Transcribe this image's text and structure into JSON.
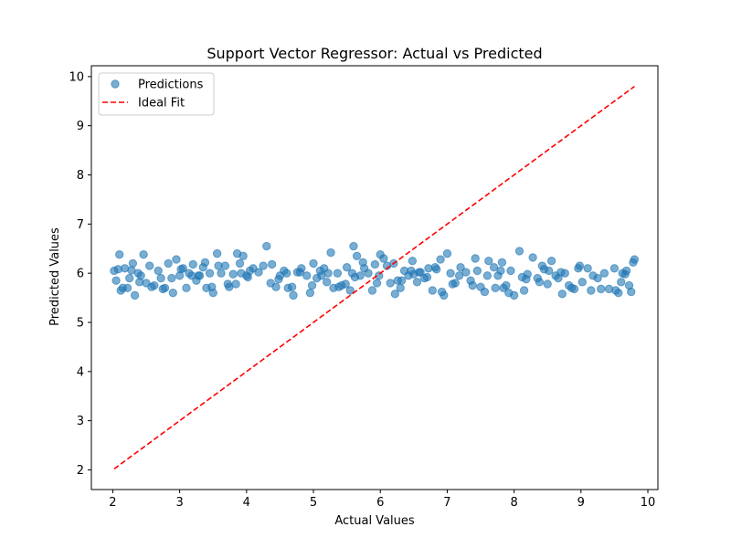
{
  "chart_data": {
    "type": "scatter",
    "title": "Support Vector Regressor: Actual vs Predicted",
    "xlabel": "Actual Values",
    "ylabel": "Predicted Values",
    "xlim": [
      1.68,
      10.15
    ],
    "ylim": [
      1.6,
      10.22
    ],
    "xticks": [
      2,
      3,
      4,
      5,
      6,
      7,
      8,
      9,
      10
    ],
    "yticks": [
      2,
      3,
      4,
      5,
      6,
      7,
      8,
      9,
      10
    ],
    "grid": false,
    "legend": {
      "placement": "top-left",
      "entries": [
        {
          "label": "Predictions",
          "marker": "circle",
          "color": "#1f77b4"
        },
        {
          "label": "Ideal Fit",
          "marker": "dashed-line",
          "color": "#ff0000"
        }
      ]
    },
    "series": [
      {
        "name": "Predictions",
        "type": "scatter",
        "color": "#1f77b4",
        "x": [
          2.02,
          2.05,
          2.1,
          2.12,
          2.18,
          2.22,
          2.25,
          2.3,
          2.33,
          2.38,
          2.42,
          2.46,
          2.5,
          2.55,
          2.62,
          2.68,
          2.72,
          2.78,
          2.83,
          2.9,
          2.95,
          3.0,
          3.05,
          3.1,
          3.14,
          3.2,
          3.25,
          3.3,
          3.35,
          3.4,
          3.45,
          3.5,
          3.56,
          3.62,
          3.68,
          3.74,
          3.8,
          3.86,
          3.9,
          3.95,
          4.0,
          4.05,
          4.1,
          4.18,
          4.25,
          4.3,
          4.36,
          4.44,
          4.5,
          4.56,
          4.62,
          4.7,
          4.76,
          4.82,
          4.9,
          4.95,
          5.0,
          5.05,
          5.1,
          5.16,
          5.2,
          5.26,
          5.3,
          5.36,
          5.42,
          5.5,
          5.55,
          5.6,
          5.65,
          5.7,
          5.76,
          5.82,
          5.88,
          5.95,
          6.0,
          6.05,
          6.1,
          6.15,
          6.2,
          6.26,
          6.3,
          6.36,
          6.42,
          6.48,
          6.55,
          6.6,
          6.66,
          6.72,
          6.78,
          6.84,
          6.9,
          6.95,
          7.0,
          7.05,
          7.12,
          7.2,
          7.28,
          7.35,
          7.42,
          7.5,
          7.56,
          7.62,
          7.7,
          7.76,
          7.82,
          7.88,
          7.95,
          8.0,
          8.08,
          8.15,
          8.2,
          8.28,
          8.35,
          8.42,
          8.5,
          8.56,
          8.62,
          8.7,
          8.76,
          8.82,
          8.9,
          8.96,
          9.02,
          9.1,
          9.18,
          9.25,
          9.35,
          9.42,
          9.5,
          9.56,
          9.62,
          9.68,
          9.72,
          9.78,
          9.8,
          2.15,
          2.4,
          2.75,
          3.02,
          3.28,
          3.58,
          3.84,
          4.02,
          4.48,
          4.68,
          4.98,
          5.22,
          5.48,
          5.74,
          5.98,
          6.22,
          6.46,
          6.7,
          6.92,
          7.18,
          7.45,
          7.72,
          7.92,
          8.18,
          8.45,
          8.72,
          8.98,
          9.3,
          9.6,
          2.28,
          2.58,
          2.88,
          3.18,
          3.48,
          3.72,
          3.92,
          4.38,
          4.8,
          5.12,
          5.38,
          5.62,
          5.92,
          6.32,
          6.58,
          6.82,
          7.08,
          7.38,
          7.6,
          7.84,
          8.12,
          8.38,
          8.66,
          8.86,
          9.15,
          9.52,
          9.75,
          2.08,
          3.38,
          4.6,
          5.58,
          6.5,
          7.8,
          8.52,
          9.66
        ],
        "y": [
          6.05,
          5.85,
          6.38,
          5.65,
          6.1,
          5.7,
          5.9,
          6.2,
          5.55,
          6.0,
          5.95,
          6.38,
          5.8,
          6.15,
          5.75,
          6.05,
          5.9,
          5.7,
          6.2,
          5.6,
          6.28,
          5.95,
          6.1,
          5.7,
          6.0,
          6.18,
          5.85,
          5.95,
          6.12,
          5.7,
          6.0,
          5.6,
          6.4,
          6.0,
          6.15,
          5.72,
          5.98,
          6.4,
          6.2,
          6.35,
          5.95,
          6.05,
          6.1,
          6.02,
          6.15,
          6.55,
          5.8,
          5.72,
          5.95,
          6.05,
          5.7,
          5.55,
          6.02,
          6.1,
          5.95,
          5.6,
          6.2,
          5.9,
          6.05,
          6.1,
          5.82,
          6.42,
          5.7,
          6.0,
          5.75,
          6.12,
          5.65,
          6.55,
          6.35,
          5.95,
          6.1,
          6.0,
          5.65,
          5.8,
          6.38,
          6.3,
          6.15,
          5.8,
          6.2,
          5.85,
          5.7,
          6.05,
          5.95,
          6.25,
          5.82,
          6.02,
          5.9,
          6.1,
          5.65,
          6.08,
          6.28,
          5.55,
          6.4,
          6.0,
          5.8,
          6.12,
          6.02,
          5.85,
          6.3,
          5.72,
          5.62,
          6.25,
          6.12,
          5.95,
          6.22,
          5.75,
          6.05,
          5.55,
          6.45,
          5.65,
          5.98,
          6.32,
          5.9,
          6.15,
          5.78,
          6.25,
          5.95,
          6.02,
          6.0,
          5.75,
          5.68,
          6.1,
          5.82,
          6.1,
          5.95,
          5.9,
          6.0,
          5.68,
          6.1,
          5.6,
          6.0,
          6.05,
          5.75,
          6.22,
          6.28,
          5.7,
          5.82,
          5.68,
          6.08,
          5.95,
          6.15,
          5.78,
          5.92,
          5.88,
          5.72,
          5.75,
          6.0,
          5.78,
          6.22,
          5.95,
          5.58,
          6.05,
          5.92,
          5.62,
          5.95,
          6.05,
          5.7,
          5.6,
          5.88,
          6.08,
          5.58,
          6.15,
          5.68,
          5.82,
          6.06,
          5.72,
          5.9,
          5.95,
          5.72,
          5.78,
          6.0,
          6.18,
          6.02,
          5.95,
          5.72,
          5.92,
          6.18,
          5.85,
          6.02,
          6.12,
          5.78,
          5.75,
          5.95,
          5.7,
          5.92,
          5.82,
          5.9,
          5.7,
          5.65,
          5.65,
          5.62,
          6.08,
          6.22,
          6.0,
          6.0,
          5.98,
          6.05,
          6.05,
          5.98
        ],
        "opacity": 0.6
      },
      {
        "name": "Ideal Fit",
        "type": "line",
        "style": "dashed",
        "color": "#ff0000",
        "x": [
          2.02,
          9.8
        ],
        "y": [
          2.02,
          9.8
        ]
      }
    ]
  }
}
